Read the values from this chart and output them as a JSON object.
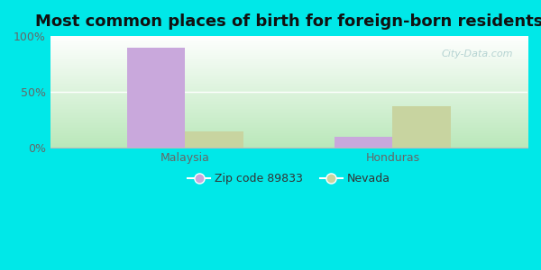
{
  "title": "Most common places of birth for foreign-born residents",
  "categories": [
    "Malaysia",
    "Honduras"
  ],
  "series": [
    {
      "label": "Zip code 89833",
      "values": [
        90,
        10
      ],
      "color": "#c9a8dc"
    },
    {
      "label": "Nevada",
      "values": [
        15,
        37
      ],
      "color": "#c8d4a0"
    }
  ],
  "ylim": [
    0,
    100
  ],
  "yticks": [
    0,
    50,
    100
  ],
  "ytick_labels": [
    "0%",
    "50%",
    "100%"
  ],
  "background_outer": "#00e8e8",
  "background_inner_top": "#ffffff",
  "background_inner_bottom": "#d0ecd0",
  "watermark": "City-Data.com",
  "bar_width": 0.28,
  "title_fontsize": 13,
  "tick_fontsize": 9,
  "legend_fontsize": 9,
  "figsize": [
    6.0,
    3.0
  ],
  "dpi": 100
}
